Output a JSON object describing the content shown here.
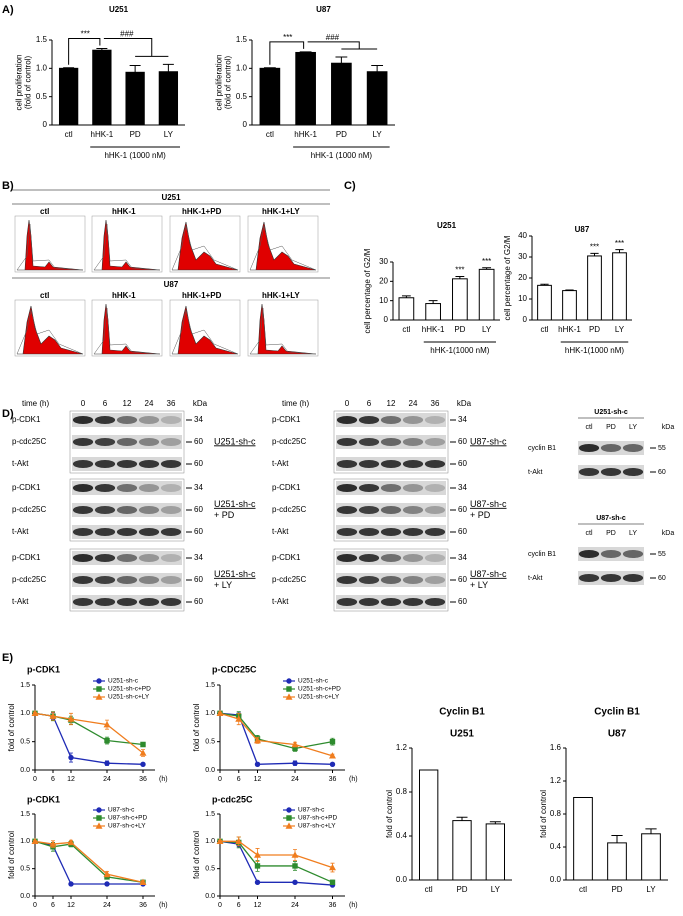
{
  "panel_labels": [
    "A)",
    "B)",
    "C)",
    "D)",
    "E)"
  ],
  "chart_data": [
    {
      "type": "bar",
      "title": "U251",
      "y_label": [
        "cell proliferation",
        "(fold of control)"
      ],
      "categories": [
        "ctl",
        "hHK-1",
        "PD",
        "LY"
      ],
      "values": [
        1.0,
        1.32,
        0.93,
        0.94
      ],
      "errors": [
        0.01,
        0.03,
        0.12,
        0.13
      ],
      "color": "#000000",
      "ylim": [
        0,
        1.5
      ],
      "yticks": [
        0,
        0.5,
        {
          "value": 1.0,
          "label": "1.0"
        },
        1.5
      ],
      "bracket_labels": [
        "***",
        "###"
      ],
      "group_label": "hHK-1 (1000 nM)"
    },
    {
      "type": "bar",
      "title": "U87",
      "y_label": [
        "cell proliferation",
        "(fold of control)"
      ],
      "categories": [
        "ctl",
        "hHK-1",
        "PD",
        "LY"
      ],
      "values": [
        1.0,
        1.28,
        1.09,
        0.94
      ],
      "errors": [
        0.01,
        0.01,
        0.11,
        0.11
      ],
      "color": "#000000",
      "ylim": [
        0,
        1.5
      ],
      "yticks": [
        0,
        0.5,
        {
          "value": 1.0,
          "label": "1.0"
        },
        1.5
      ],
      "bracket_labels": [
        "***",
        "###"
      ],
      "group_label": "hHK-1 (1000 nM)"
    },
    {
      "type": "bar",
      "title": "U251",
      "y_label": "cell percentage of G2/M",
      "categories": [
        "ctl",
        "hHK-1",
        "PD",
        "LY"
      ],
      "values": [
        11.5,
        8.5,
        21.3,
        26.2
      ],
      "errors": [
        1.0,
        1.5,
        1.2,
        0.8
      ],
      "color": "#ffffff",
      "ylim": [
        0,
        30
      ],
      "yticks": [
        0,
        10,
        20,
        30
      ],
      "value_annotations": [
        null,
        null,
        "***",
        "***"
      ],
      "group_label": "hHK-1(1000 nM)"
    },
    {
      "type": "bar",
      "title": "U87",
      "y_label": "cell percentage of G2/M",
      "categories": [
        "ctl",
        "hHK-1",
        "PD",
        "LY"
      ],
      "values": [
        16.5,
        14.0,
        30.5,
        32.0
      ],
      "errors": [
        0.5,
        0.3,
        1.2,
        1.5
      ],
      "color": "#ffffff",
      "ylim": [
        0,
        40
      ],
      "yticks": [
        0,
        10,
        20,
        30,
        40
      ],
      "value_annotations": [
        null,
        null,
        "***",
        "***"
      ],
      "group_label": "hHK-1(1000 nM)"
    },
    {
      "type": "line",
      "title": "p-CDK1",
      "y_label": "fold of control",
      "x": [
        0,
        6,
        12,
        24,
        36
      ],
      "xlim": [
        0,
        40
      ],
      "xticks": [
        0,
        6,
        12,
        24,
        36
      ],
      "x_unit": "(h)",
      "ylim": [
        0,
        1.5
      ],
      "yticks": [
        {
          "value": 0,
          "label": "0.0"
        },
        0.5,
        {
          "value": 1,
          "label": "1.0"
        },
        1.5
      ],
      "legend": "upper-right",
      "series": [
        {
          "name": "U251-sh-c",
          "color": "#1f2bb5",
          "marker": "circle",
          "values": [
            1.0,
            0.95,
            0.22,
            0.12,
            0.1
          ],
          "errors": [
            0.02,
            0.06,
            0.08,
            0.04,
            0.02
          ]
        },
        {
          "name": "U251-sh-c+PD",
          "color": "#2e8b2e",
          "marker": "square",
          "values": [
            1.0,
            0.95,
            0.88,
            0.52,
            0.45
          ],
          "errors": [
            0.02,
            0.08,
            0.07,
            0.06,
            0.03
          ]
        },
        {
          "name": "U251-sh-c+LY",
          "color": "#f07d1e",
          "marker": "triangle",
          "values": [
            1.0,
            0.95,
            0.9,
            0.8,
            0.3
          ],
          "errors": [
            0.02,
            0.07,
            0.1,
            0.08,
            0.06
          ]
        }
      ]
    },
    {
      "type": "line",
      "title": "p-CDC25C",
      "y_label": "fold of control",
      "x": [
        0,
        6,
        12,
        24,
        36
      ],
      "xlim": [
        0,
        40
      ],
      "xticks": [
        0,
        6,
        12,
        24,
        36
      ],
      "x_unit": "(h)",
      "ylim": [
        0,
        1.5
      ],
      "yticks": [
        {
          "value": 0,
          "label": "0.0"
        },
        0.5,
        {
          "value": 1,
          "label": "1.0"
        },
        1.5
      ],
      "legend": "upper-right",
      "series": [
        {
          "name": "U251-sh-c",
          "color": "#1f2bb5",
          "marker": "circle",
          "values": [
            1.0,
            0.97,
            0.1,
            0.12,
            0.1
          ],
          "errors": [
            0.02,
            0.04,
            0.03,
            0.04,
            0.02
          ]
        },
        {
          "name": "U251-sh-c+PD",
          "color": "#2e8b2e",
          "marker": "square",
          "values": [
            1.0,
            0.95,
            0.55,
            0.38,
            0.5
          ],
          "errors": [
            0.02,
            0.08,
            0.06,
            0.05,
            0.06
          ]
        },
        {
          "name": "U251-sh-c+LY",
          "color": "#f07d1e",
          "marker": "triangle",
          "values": [
            1.0,
            0.9,
            0.52,
            0.45,
            0.25
          ],
          "errors": [
            0.02,
            0.1,
            0.05,
            0.04,
            0.03
          ]
        }
      ]
    },
    {
      "type": "line",
      "title": "p-CDK1",
      "y_label": "fold of control",
      "x": [
        0,
        6,
        12,
        24,
        36
      ],
      "xlim": [
        0,
        40
      ],
      "xticks": [
        0,
        6,
        12,
        24,
        36
      ],
      "x_unit": "(h)",
      "ylim": [
        0,
        1.5
      ],
      "yticks": [
        {
          "value": 0,
          "label": "0.0"
        },
        0.5,
        {
          "value": 1,
          "label": "1.0"
        },
        1.5
      ],
      "legend": "upper-right",
      "series": [
        {
          "name": "U87-sh-c",
          "color": "#1f2bb5",
          "marker": "circle",
          "values": [
            1.0,
            0.92,
            0.22,
            0.22,
            0.22
          ],
          "errors": [
            0.02,
            0.06,
            0.02,
            0.02,
            0.02
          ]
        },
        {
          "name": "U87-sh-c+PD",
          "color": "#2e8b2e",
          "marker": "square",
          "values": [
            1.0,
            0.9,
            0.95,
            0.35,
            0.25
          ],
          "errors": [
            0.02,
            0.08,
            0.05,
            0.04,
            0.03
          ]
        },
        {
          "name": "U87-sh-c+LY",
          "color": "#f07d1e",
          "marker": "triangle",
          "values": [
            1.0,
            0.95,
            0.98,
            0.4,
            0.25
          ],
          "errors": [
            0.02,
            0.06,
            0.04,
            0.05,
            0.03
          ]
        }
      ]
    },
    {
      "type": "line",
      "title": "p-cdc25C",
      "y_label": "fold of control",
      "x": [
        0,
        6,
        12,
        24,
        36
      ],
      "xlim": [
        0,
        40
      ],
      "xticks": [
        0,
        6,
        12,
        24,
        36
      ],
      "x_unit": "(h)",
      "ylim": [
        0,
        1.5
      ],
      "yticks": [
        {
          "value": 0,
          "label": "0.0"
        },
        0.5,
        {
          "value": 1,
          "label": "1.0"
        },
        1.5
      ],
      "legend": "upper-right",
      "series": [
        {
          "name": "U87-sh-c",
          "color": "#1f2bb5",
          "marker": "circle",
          "values": [
            1.0,
            0.95,
            0.25,
            0.25,
            0.2
          ],
          "errors": [
            0.02,
            0.05,
            0.02,
            0.02,
            0.02
          ]
        },
        {
          "name": "U87-sh-c+PD",
          "color": "#2e8b2e",
          "marker": "square",
          "values": [
            1.0,
            0.98,
            0.55,
            0.55,
            0.25
          ],
          "errors": [
            0.02,
            0.1,
            0.1,
            0.08,
            0.04
          ]
        },
        {
          "name": "U87-sh-c+LY",
          "color": "#f07d1e",
          "marker": "triangle",
          "values": [
            1.0,
            1.0,
            0.75,
            0.75,
            0.52
          ],
          "errors": [
            0.02,
            0.08,
            0.12,
            0.1,
            0.08
          ]
        }
      ]
    },
    {
      "type": "bar",
      "title": "Cyclin B1",
      "subtitle": "U251",
      "y_label": "fold of control",
      "categories": [
        "ctl",
        "PD",
        "LY"
      ],
      "values": [
        1.0,
        0.54,
        0.51
      ],
      "errors": [
        0,
        0.03,
        0.02
      ],
      "color": "#ffffff",
      "ylim": [
        0,
        1.2
      ],
      "yticks": [
        {
          "value": 0,
          "label": "0.0"
        },
        0.4,
        0.8,
        1.2
      ]
    },
    {
      "type": "bar",
      "title": "Cyclin B1",
      "subtitle": "U87",
      "y_label": "fold of control",
      "categories": [
        "ctl",
        "PD",
        "LY"
      ],
      "values": [
        1.0,
        0.45,
        0.56
      ],
      "errors": [
        0,
        0.09,
        0.06
      ],
      "color": "#ffffff",
      "ylim": [
        0,
        1.6
      ],
      "yticks": [
        {
          "value": 0,
          "label": "0.0"
        },
        0.4,
        0.8,
        1.2,
        1.6
      ]
    }
  ],
  "flow": {
    "rows": [
      "U251",
      "U87"
    ],
    "columns": [
      "ctl",
      "hHK-1",
      "hHK-1+PD",
      "hHK-1+LY"
    ]
  },
  "blots": {
    "time_label": "time (h)",
    "times": [
      "0",
      "6",
      "12",
      "24",
      "36"
    ],
    "kda": "kDa",
    "groups": [
      {
        "lines": [
          "U251-sh-c"
        ],
        "rows": [
          {
            "name": "p-CDK1",
            "kda": "34"
          },
          {
            "name": "p-cdc25C",
            "kda": "60"
          },
          {
            "name": "t-Akt",
            "kda": "60"
          }
        ]
      },
      {
        "lines": [
          "U251-sh-c",
          "+ PD"
        ],
        "rows": [
          {
            "name": "p-CDK1",
            "kda": "34"
          },
          {
            "name": "p-cdc25C",
            "kda": "60"
          },
          {
            "name": "t-Akt",
            "kda": "60"
          }
        ]
      },
      {
        "lines": [
          "U251-sh-c",
          "+ LY"
        ],
        "rows": [
          {
            "name": "p-CDK1",
            "kda": "34"
          },
          {
            "name": "p-cdc25C",
            "kda": "60"
          },
          {
            "name": "t-Akt",
            "kda": "60"
          }
        ]
      },
      {
        "lines": [
          "U87-sh-c"
        ],
        "rows": [
          {
            "name": "p-CDK1",
            "kda": "34"
          },
          {
            "name": "p-cdc25C",
            "kda": "60"
          },
          {
            "name": "t-Akt",
            "kda": "60"
          }
        ]
      },
      {
        "lines": [
          "U87-sh-c",
          "+ PD"
        ],
        "rows": [
          {
            "name": "p-CDK1",
            "kda": "34"
          },
          {
            "name": "p-cdc25C",
            "kda": "60"
          },
          {
            "name": "t-Akt",
            "kda": "60"
          }
        ]
      },
      {
        "lines": [
          "U87-sh-c",
          "+ LY"
        ],
        "rows": [
          {
            "name": "p-CDK1",
            "kda": "34"
          },
          {
            "name": "p-cdc25C",
            "kda": "60"
          },
          {
            "name": "t-Akt",
            "kda": "60"
          }
        ]
      }
    ],
    "cyclin": [
      {
        "title": "U251-sh-c",
        "columns": [
          "ctl",
          "PD",
          "LY"
        ],
        "rows": [
          {
            "name": "cyclin B1",
            "kda": "55"
          },
          {
            "name": "t-Akt",
            "kda": "60"
          }
        ]
      },
      {
        "title": "U87-sh-c",
        "columns": [
          "ctl",
          "PD",
          "LY"
        ],
        "rows": [
          {
            "name": "cyclin B1",
            "kda": "55"
          },
          {
            "name": "t-Akt",
            "kda": "60"
          }
        ]
      }
    ]
  }
}
